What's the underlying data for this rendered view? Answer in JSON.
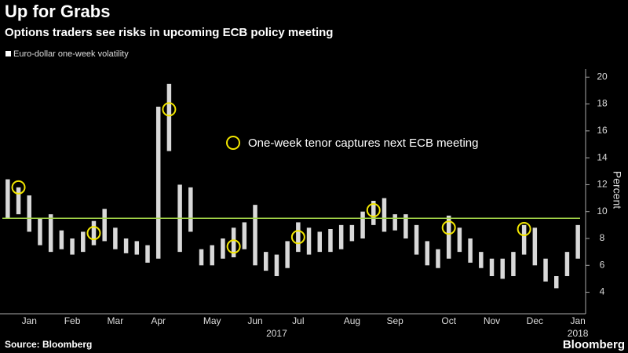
{
  "chart_data": {
    "type": "range_bar",
    "title": "Up for Grabs",
    "subtitle": "Options traders see risks in upcoming ECB policy meeting",
    "y_label": "Percent",
    "source": "Source: Bloomberg",
    "brand": "Bloomberg",
    "annotation": "One-week tenor captures next ECB meeting",
    "categories": [
      null,
      null,
      "Jan",
      null,
      null,
      null,
      "Feb",
      null,
      null,
      null,
      "Mar",
      null,
      null,
      null,
      "Apr",
      null,
      null,
      null,
      null,
      "May",
      null,
      null,
      null,
      "Jun",
      null,
      null,
      null,
      "Jul",
      null,
      null,
      null,
      null,
      "Aug",
      null,
      null,
      null,
      "Sep",
      null,
      null,
      null,
      null,
      "Oct",
      null,
      null,
      null,
      "Nov",
      null,
      null,
      null,
      "Dec",
      null,
      null,
      null,
      "Jan"
    ],
    "year_categories": [
      null,
      null,
      null,
      null,
      null,
      null,
      null,
      null,
      null,
      null,
      null,
      null,
      null,
      null,
      null,
      null,
      null,
      null,
      null,
      null,
      null,
      null,
      null,
      null,
      null,
      "2017",
      null,
      null,
      null,
      null,
      null,
      null,
      null,
      null,
      null,
      null,
      null,
      null,
      null,
      null,
      null,
      null,
      null,
      null,
      null,
      null,
      null,
      null,
      null,
      null,
      null,
      null,
      null,
      "2018"
    ],
    "series": [
      {
        "name": "Euro-dollar one-week volatility",
        "color": "#ffffff",
        "low": [
          9.5,
          9.8,
          8.5,
          7.5,
          7.0,
          7.2,
          6.8,
          7.0,
          7.5,
          7.8,
          7.2,
          6.9,
          6.8,
          6.2,
          6.5,
          14.5,
          7.0,
          8.5,
          6.0,
          6.0,
          6.5,
          6.6,
          7.2,
          6.0,
          5.6,
          5.2,
          5.8,
          7.0,
          6.8,
          7.0,
          7.0,
          7.2,
          7.8,
          8.0,
          9.0,
          8.5,
          8.6,
          8.0,
          6.8,
          6.0,
          5.8,
          6.5,
          7.0,
          6.2,
          5.8,
          5.2,
          5.0,
          5.2,
          6.8,
          6.0,
          4.8,
          4.3,
          5.2,
          6.5
        ],
        "high": [
          12.4,
          11.8,
          11.2,
          9.5,
          9.8,
          8.6,
          8.0,
          8.5,
          9.3,
          10.2,
          8.8,
          8.0,
          7.8,
          7.5,
          17.8,
          19.5,
          12.0,
          11.8,
          7.2,
          7.5,
          8.0,
          8.8,
          9.2,
          10.5,
          7.0,
          6.8,
          7.8,
          9.2,
          8.8,
          8.5,
          8.7,
          9.0,
          9.0,
          10.0,
          10.8,
          11.0,
          9.8,
          9.8,
          9.0,
          7.8,
          7.2,
          9.7,
          8.8,
          8.0,
          7.0,
          6.5,
          6.5,
          7.0,
          9.0,
          8.8,
          6.5,
          5.2,
          7.0,
          9.0
        ]
      }
    ],
    "highlights": {
      "color": "#f2e600",
      "values": [
        null,
        11.8,
        null,
        null,
        null,
        null,
        null,
        null,
        8.4,
        null,
        null,
        null,
        null,
        null,
        null,
        17.6,
        null,
        null,
        null,
        null,
        null,
        7.4,
        null,
        null,
        null,
        null,
        null,
        8.1,
        null,
        null,
        null,
        null,
        null,
        null,
        10.1,
        null,
        null,
        null,
        null,
        null,
        null,
        8.8,
        null,
        null,
        null,
        null,
        null,
        null,
        8.7,
        null,
        null,
        null,
        null,
        null
      ]
    },
    "reference_line": {
      "value": 9.5,
      "color": "#a6d84a"
    },
    "ylim": [
      2.4,
      20.6
    ],
    "yticks": [
      4,
      6,
      8,
      10,
      12,
      14,
      16,
      18,
      20
    ]
  }
}
